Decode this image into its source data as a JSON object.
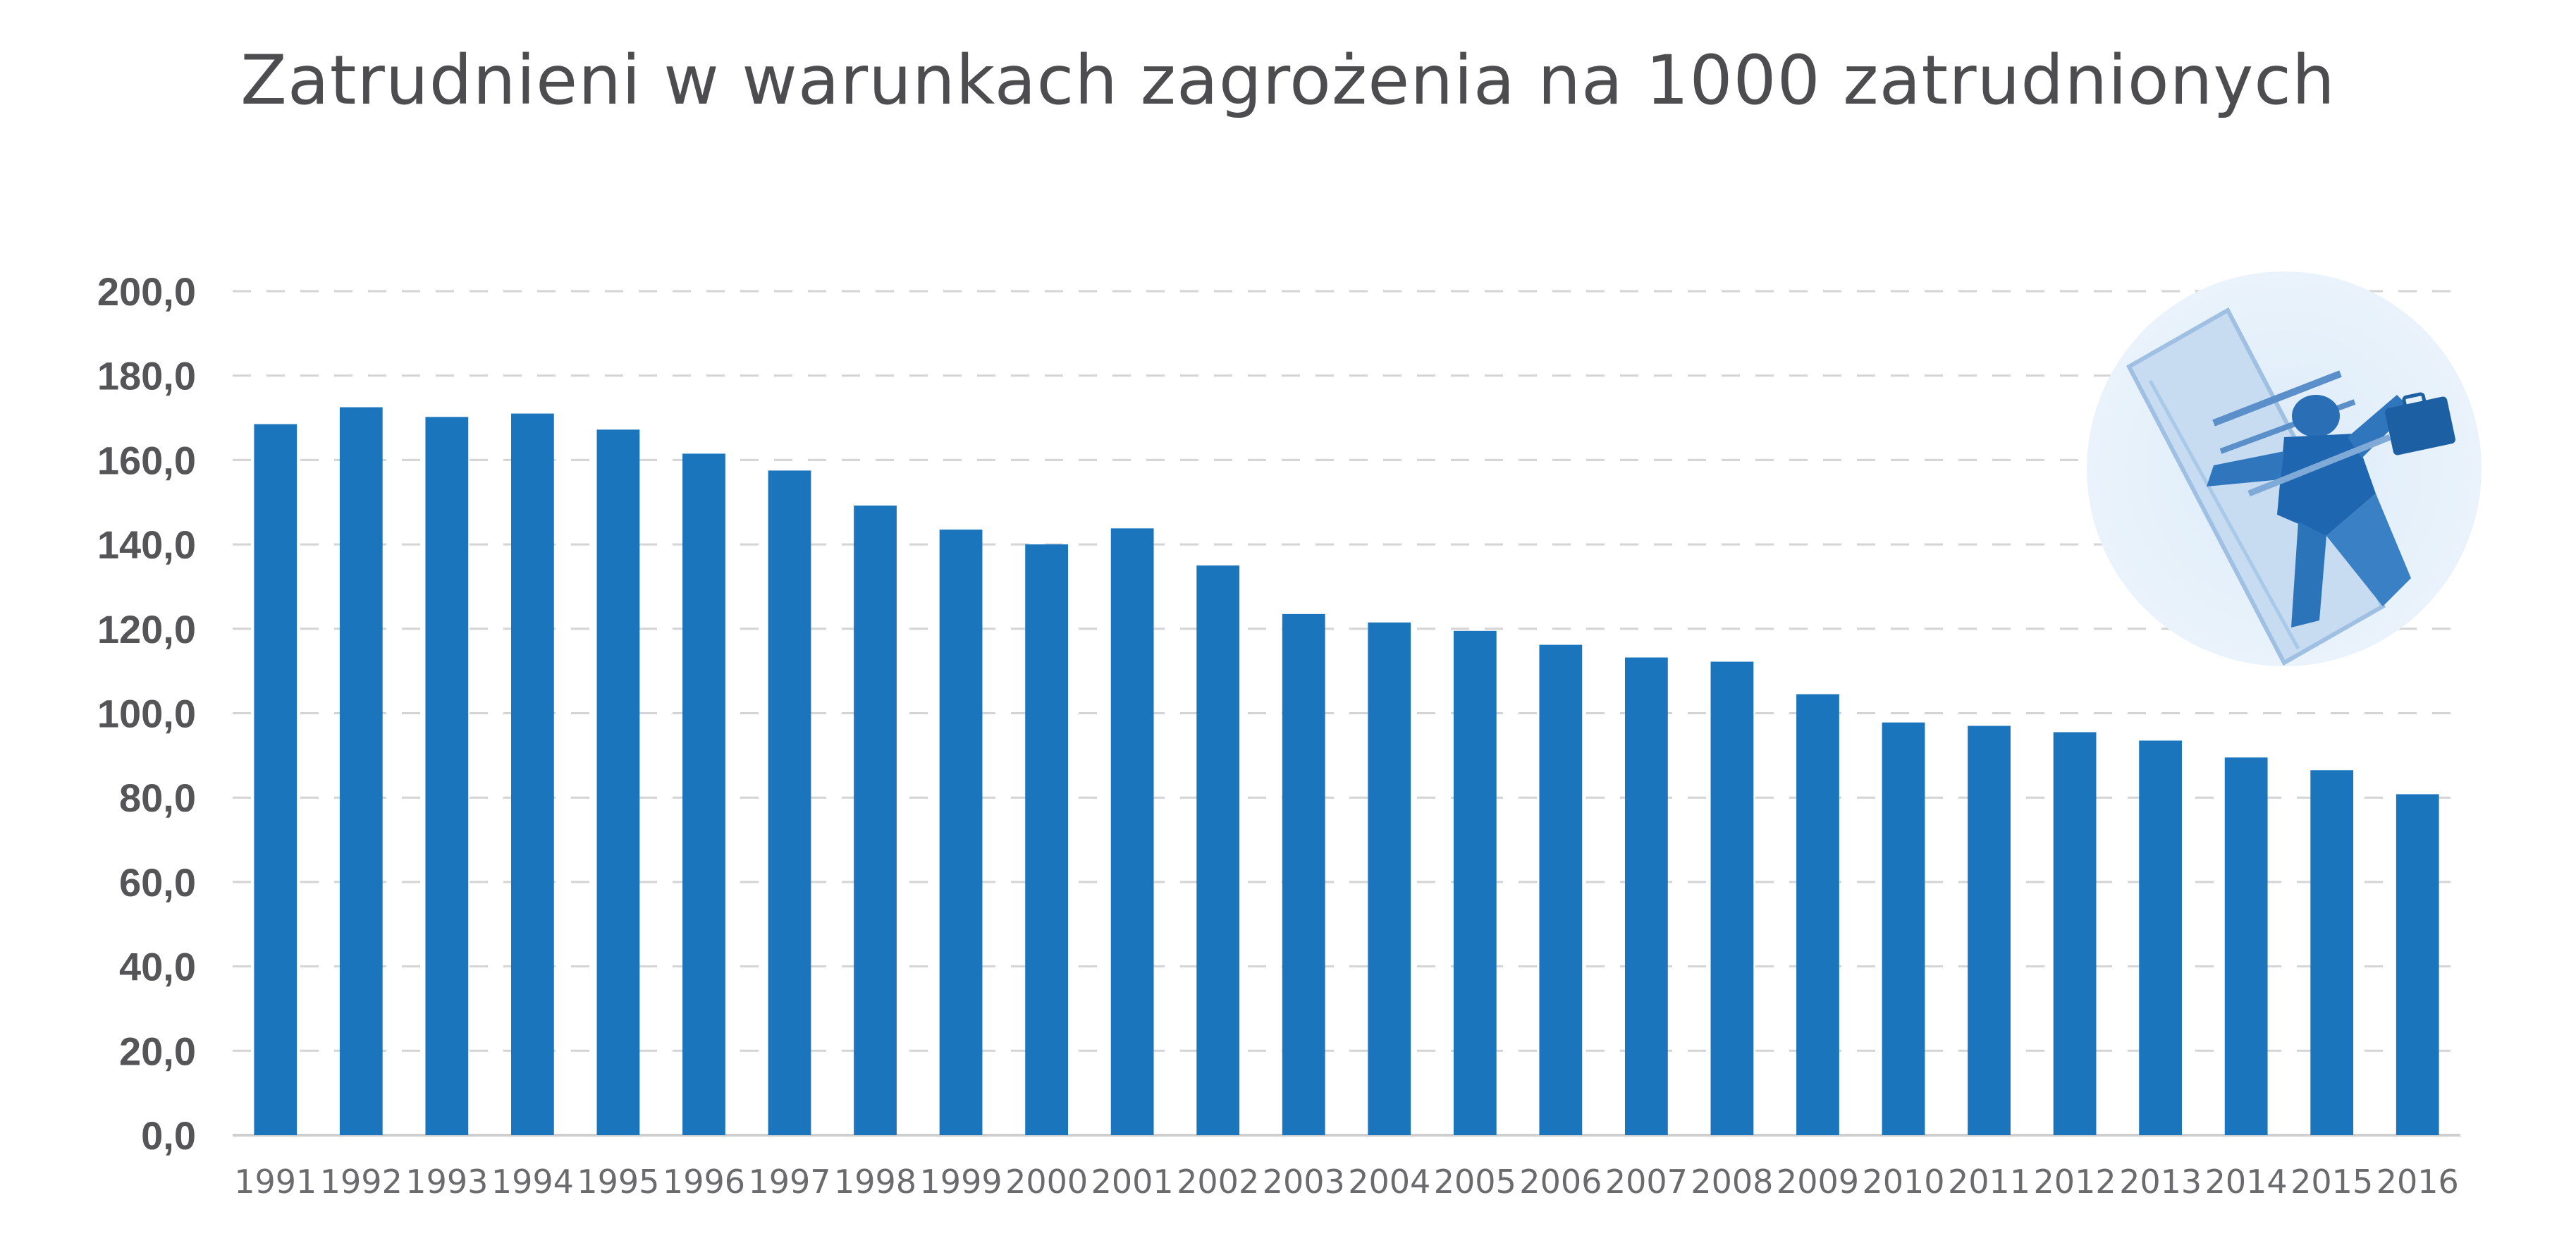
{
  "chart_data": {
    "type": "bar",
    "title": "Zatrudnieni w warunkach zagrożenia na 1000 zatrudnionych",
    "xlabel": "",
    "ylabel": "",
    "categories": [
      "1991",
      "1992",
      "1993",
      "1994",
      "1995",
      "1996",
      "1997",
      "1998",
      "1999",
      "2000",
      "2001",
      "2002",
      "2003",
      "2004",
      "2005",
      "2006",
      "2007",
      "2008",
      "2009",
      "2010",
      "2011",
      "2012",
      "2013",
      "2014",
      "2015",
      "2016"
    ],
    "values": [
      168.5,
      172.5,
      170.2,
      171.0,
      167.2,
      161.5,
      157.5,
      149.2,
      143.5,
      140.0,
      143.8,
      135.0,
      123.5,
      121.5,
      119.5,
      116.2,
      113.2,
      112.2,
      104.5,
      97.8,
      97.0,
      95.5,
      93.5,
      89.5,
      86.5,
      80.8
    ],
    "ylim": [
      0,
      200
    ],
    "yticks": [
      "0,0",
      "20,0",
      "40,0",
      "60,0",
      "80,0",
      "100,0",
      "120,0",
      "140,0",
      "160,0",
      "180,0",
      "200,0"
    ],
    "ytick_values": [
      0,
      20,
      40,
      60,
      80,
      100,
      120,
      140,
      160,
      180,
      200
    ],
    "grid": true,
    "legend": "none",
    "bar_color": "#1b75bc",
    "illustration": "circle-photo-businessman-in-mousetrap"
  }
}
